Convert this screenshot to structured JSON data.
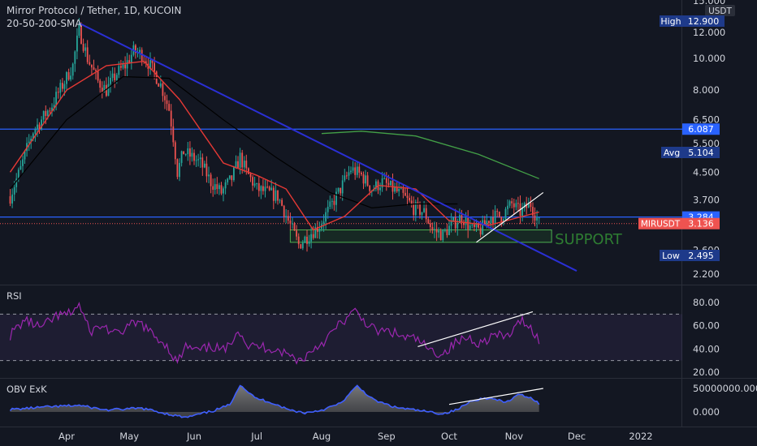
{
  "header": {
    "symbol_title": "Mirror Protocol / Tether, 1D, KUCOIN",
    "indicator": "20-50-200-SMA"
  },
  "price_axis": {
    "currency": "USDT",
    "top_partial_label": "15.000",
    "ticks": [
      "12.000",
      "10.000",
      "8.000",
      "6.500",
      "5.500",
      "4.500",
      "3.700",
      "2.600",
      "2.200"
    ]
  },
  "badges": {
    "high_label": "High",
    "high_value": "12.900",
    "avg_label": "Avg",
    "avg_value": "5.104",
    "low_label": "Low",
    "low_value": "2.495",
    "level_upper": "6.087",
    "level_lower": "3.284",
    "symbol": "MIRUSDT",
    "last_price": "3.136"
  },
  "annotations": {
    "support": "SUPPORT"
  },
  "rsi": {
    "title": "RSI",
    "ticks": [
      "80.00",
      "60.00",
      "40.00",
      "20.00"
    ],
    "upper_band": 70,
    "lower_band": 30
  },
  "obv": {
    "title": "OBV ExK",
    "ticks": [
      "50000000.000",
      "0.000"
    ]
  },
  "time_axis": {
    "labels": [
      "Apr",
      "May",
      "Jun",
      "Jul",
      "Aug",
      "Sep",
      "Oct",
      "Nov",
      "Dec",
      "2022"
    ]
  },
  "colors": {
    "background": "#131722",
    "up": "#26a69a",
    "down": "#ef5350",
    "sma20": "#e53935",
    "sma50": "#000000",
    "sma200": "#43a047",
    "trendline": "#2a2fd4",
    "level_line": "#2962ff",
    "rsi_line": "#9c27b0",
    "obv_line": "#3f5fff",
    "support_box": "#4caf50"
  },
  "chart_data": [
    {
      "type": "candlestick",
      "title": "Mirror Protocol / Tether, 1D, KUCOIN",
      "ylabel": "USDT",
      "scale": "log",
      "ylim": [
        2.0,
        15.0
      ],
      "x_range": [
        "Mar 5",
        "Dec 31"
      ],
      "path": [
        [
          "Mar 5",
          3.8
        ],
        [
          "Mar 10",
          4.6
        ],
        [
          "Mar 16",
          6.0
        ],
        [
          "Mar 20",
          6.5
        ],
        [
          "Mar 25",
          7.2
        ],
        [
          "Mar 31",
          8.5
        ],
        [
          "Apr 4",
          9.5
        ],
        [
          "Apr 7",
          12.2
        ],
        [
          "Apr 11",
          10.0
        ],
        [
          "Apr 16",
          8.5
        ],
        [
          "Apr 20",
          8.0
        ],
        [
          "Apr 25",
          9.0
        ],
        [
          "Apr 29",
          9.5
        ],
        [
          "May 3",
          10.5
        ],
        [
          "May 7",
          10.3
        ],
        [
          "May 11",
          9.5
        ],
        [
          "May 16",
          8.3
        ],
        [
          "May 20",
          7.0
        ],
        [
          "May 24",
          4.5
        ],
        [
          "May 27",
          5.2
        ],
        [
          "May 31",
          5.0
        ],
        [
          "Jun 4",
          4.8
        ],
        [
          "Jun 9",
          4.2
        ],
        [
          "Jun 14",
          3.9
        ],
        [
          "Jun 19",
          4.3
        ],
        [
          "Jun 23",
          5.0
        ],
        [
          "Jun 26",
          4.5
        ],
        [
          "Jul 1",
          4.0
        ],
        [
          "Jul 6",
          3.9
        ],
        [
          "Jul 11",
          3.8
        ],
        [
          "Jul 16",
          3.2
        ],
        [
          "Jul 21",
          2.7
        ],
        [
          "Jul 26",
          2.9
        ],
        [
          "Jul 31",
          3.1
        ],
        [
          "Aug 5",
          3.5
        ],
        [
          "Aug 10",
          4.0
        ],
        [
          "Aug 15",
          4.6
        ],
        [
          "Aug 20",
          4.4
        ],
        [
          "Aug 25",
          4.0
        ],
        [
          "Aug 30",
          4.2
        ],
        [
          "Sep 4",
          4.0
        ],
        [
          "Sep 9",
          3.8
        ],
        [
          "Sep 14",
          3.5
        ],
        [
          "Sep 19",
          3.4
        ],
        [
          "Sep 23",
          3.0
        ],
        [
          "Sep 28",
          2.9
        ],
        [
          "Oct 2",
          3.1
        ],
        [
          "Oct 7",
          3.3
        ],
        [
          "Oct 12",
          3.0
        ],
        [
          "Oct 16",
          3.0
        ],
        [
          "Oct 21",
          3.3
        ],
        [
          "Oct 26",
          3.3
        ],
        [
          "Oct 31",
          3.6
        ],
        [
          "Nov 4",
          3.4
        ],
        [
          "Nov 9",
          3.6
        ],
        [
          "Nov 13",
          3.14
        ]
      ],
      "sma20": [
        [
          "Mar 5",
          4.5
        ],
        [
          "Apr 1",
          8.0
        ],
        [
          "Apr 20",
          9.5
        ],
        [
          "May 8",
          9.8
        ],
        [
          "May 25",
          7.5
        ],
        [
          "Jun 15",
          4.8
        ],
        [
          "Jul 1",
          4.4
        ],
        [
          "Jul 15",
          4.0
        ],
        [
          "Jul 28",
          3.0
        ],
        [
          "Aug 12",
          3.3
        ],
        [
          "Aug 28",
          4.1
        ],
        [
          "Sep 15",
          4.0
        ],
        [
          "Oct 1",
          3.2
        ],
        [
          "Oct 20",
          3.1
        ],
        [
          "Nov 13",
          3.4
        ]
      ],
      "sma50": [
        [
          "Mar 5",
          4.0
        ],
        [
          "Apr 1",
          6.5
        ],
        [
          "Apr 28",
          8.8
        ],
        [
          "May 20",
          8.7
        ],
        [
          "Jun 15",
          6.5
        ],
        [
          "Jul 10",
          5.0
        ],
        [
          "Aug 5",
          3.9
        ],
        [
          "Aug 25",
          3.5
        ],
        [
          "Sep 15",
          3.6
        ],
        [
          "Oct 5",
          3.6
        ]
      ],
      "sma200": [
        [
          "Aug 1",
          5.9
        ],
        [
          "Aug 20",
          6.0
        ],
        [
          "Sep 15",
          5.8
        ],
        [
          "Oct 15",
          5.1
        ],
        [
          "Nov 13",
          4.3
        ]
      ],
      "trendline": [
        [
          "Apr 7",
          12.8
        ],
        [
          "Dec 1",
          2.25
        ]
      ],
      "resistance_line": [
        [
          "Oct 14",
          2.75
        ],
        [
          "Nov 15",
          3.9
        ]
      ],
      "levels": [
        6.087,
        3.284
      ],
      "support_zone": {
        "from": "Jul 17",
        "to": "Nov 19",
        "ylim": [
          2.75,
          3.0
        ],
        "label": "SUPPORT"
      },
      "last_price": 3.136
    },
    {
      "type": "line",
      "title": "RSI",
      "ylim": [
        15,
        85
      ],
      "bands": [
        70,
        30
      ],
      "series": [
        {
          "values": [
            [
              "Mar 5",
              52
            ],
            [
              "Mar 12",
              65
            ],
            [
              "Mar 20",
              58
            ],
            [
              "Mar 27",
              68
            ],
            [
              "Apr 2",
              70
            ],
            [
              "Apr 7",
              78
            ],
            [
              "Apr 12",
              55
            ],
            [
              "Apr 18",
              60
            ],
            [
              "Apr 25",
              52
            ],
            [
              "May 1",
              60
            ],
            [
              "May 7",
              62
            ],
            [
              "May 12",
              52
            ],
            [
              "May 18",
              45
            ],
            [
              "May 24",
              28
            ],
            [
              "May 28",
              42
            ],
            [
              "Jun 3",
              38
            ],
            [
              "Jun 10",
              42
            ],
            [
              "Jun 16",
              38
            ],
            [
              "Jun 22",
              58
            ],
            [
              "Jun 27",
              42
            ],
            [
              "Jul 3",
              42
            ],
            [
              "Jul 10",
              40
            ],
            [
              "Jul 16",
              35
            ],
            [
              "Jul 22",
              30
            ],
            [
              "Jul 28",
              40
            ],
            [
              "Aug 3",
              48
            ],
            [
              "Aug 10",
              62
            ],
            [
              "Aug 17",
              72
            ],
            [
              "Aug 21",
              65
            ],
            [
              "Aug 27",
              55
            ],
            [
              "Sep 3",
              55
            ],
            [
              "Sep 9",
              50
            ],
            [
              "Sep 16",
              48
            ],
            [
              "Sep 22",
              38
            ],
            [
              "Sep 28",
              36
            ],
            [
              "Oct 4",
              45
            ],
            [
              "Oct 10",
              50
            ],
            [
              "Oct 16",
              45
            ],
            [
              "Oct 22",
              52
            ],
            [
              "Oct 28",
              50
            ],
            [
              "Nov 2",
              58
            ],
            [
              "Nov 5",
              66
            ],
            [
              "Nov 9",
              58
            ],
            [
              "Nov 13",
              48
            ]
          ]
        }
      ],
      "divergence_line": [
        [
          "Sep 16",
          42
        ],
        [
          "Nov 10",
          72
        ]
      ]
    },
    {
      "type": "area",
      "title": "OBV ExK",
      "ylim": [
        -20000000,
        75000000
      ],
      "series": [
        {
          "values": [
            [
              "Mar 5",
              5000000
            ],
            [
              "Mar 20",
              10000000
            ],
            [
              "Apr 7",
              14000000
            ],
            [
              "Apr 20",
              4000000
            ],
            [
              "May 7",
              8000000
            ],
            [
              "May 20",
              -5000000
            ],
            [
              "May 28",
              -12000000
            ],
            [
              "Jun 10",
              2000000
            ],
            [
              "Jun 18",
              15000000
            ],
            [
              "Jun 23",
              58000000
            ],
            [
              "Jun 30",
              30000000
            ],
            [
              "Jul 8",
              20000000
            ],
            [
              "Jul 16",
              5000000
            ],
            [
              "Jul 24",
              -2000000
            ],
            [
              "Aug 1",
              4000000
            ],
            [
              "Aug 10",
              18000000
            ],
            [
              "Aug 18",
              55000000
            ],
            [
              "Aug 26",
              25000000
            ],
            [
              "Sep 5",
              10000000
            ],
            [
              "Sep 18",
              2000000
            ],
            [
              "Sep 28",
              -4000000
            ],
            [
              "Oct 5",
              5000000
            ],
            [
              "Oct 12",
              25000000
            ],
            [
              "Oct 20",
              30000000
            ],
            [
              "Oct 28",
              20000000
            ],
            [
              "Nov 4",
              38000000
            ],
            [
              "Nov 10",
              28000000
            ],
            [
              "Nov 13",
              18000000
            ]
          ]
        }
      ],
      "divergence_line": [
        [
          "Oct 1",
          16000000
        ],
        [
          "Nov 15",
          50000000
        ]
      ]
    }
  ]
}
